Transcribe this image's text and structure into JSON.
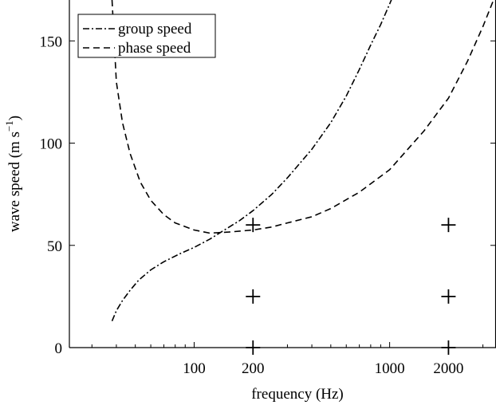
{
  "chart_data": {
    "type": "line",
    "title": "",
    "xlabel": "frequency (Hz)",
    "ylabel_parts": {
      "main": "wave speed (m s",
      "superscript": "−1",
      "close": ")"
    },
    "x_scale": "log",
    "xlim": [
      23,
      3500
    ],
    "ylim": [
      0,
      170
    ],
    "x_ticks": [
      100,
      200,
      1000,
      2000
    ],
    "x_tick_labels": [
      "100",
      "200",
      "1000",
      "2000"
    ],
    "x_minor_ticks": [
      30,
      40,
      50,
      60,
      70,
      80,
      90,
      300,
      400,
      500,
      600,
      700,
      800,
      900,
      3000
    ],
    "y_ticks": [
      0,
      50,
      100,
      150
    ],
    "y_tick_labels": [
      "0",
      "50",
      "100",
      "150"
    ],
    "legend_position": "top-left",
    "grid": false,
    "series": [
      {
        "name": "group speed",
        "style": "dash-dot",
        "color": "#000000",
        "points": [
          [
            38,
            13
          ],
          [
            40,
            18
          ],
          [
            43,
            23
          ],
          [
            47,
            28
          ],
          [
            52,
            33
          ],
          [
            60,
            38
          ],
          [
            70,
            42
          ],
          [
            85,
            46
          ],
          [
            100,
            49
          ],
          [
            120,
            53
          ],
          [
            140,
            57
          ],
          [
            170,
            62
          ],
          [
            200,
            67
          ],
          [
            250,
            75
          ],
          [
            300,
            83
          ],
          [
            400,
            97
          ],
          [
            500,
            110
          ],
          [
            600,
            123
          ],
          [
            700,
            136
          ],
          [
            800,
            148
          ],
          [
            900,
            158
          ],
          [
            1000,
            168
          ],
          [
            1030,
            171
          ]
        ]
      },
      {
        "name": "phase speed",
        "style": "dashed",
        "color": "#000000",
        "points": [
          [
            38,
            170
          ],
          [
            39,
            150
          ],
          [
            40,
            130
          ],
          [
            43,
            110
          ],
          [
            47,
            95
          ],
          [
            53,
            81
          ],
          [
            60,
            72
          ],
          [
            70,
            65
          ],
          [
            80,
            61
          ],
          [
            100,
            57.5
          ],
          [
            120,
            56
          ],
          [
            150,
            56.5
          ],
          [
            200,
            57.5
          ],
          [
            250,
            59
          ],
          [
            300,
            61
          ],
          [
            400,
            64
          ],
          [
            500,
            68
          ],
          [
            700,
            76
          ],
          [
            1000,
            87
          ],
          [
            1500,
            106
          ],
          [
            2000,
            122
          ],
          [
            2500,
            140
          ],
          [
            3000,
            157
          ],
          [
            3400,
            170
          ]
        ]
      }
    ],
    "markers": [
      {
        "symbol": "+",
        "x": 200,
        "y": 60
      },
      {
        "symbol": "+",
        "x": 200,
        "y": 25
      },
      {
        "symbol": "+",
        "x": 200,
        "y": 0
      },
      {
        "symbol": "+",
        "x": 2000,
        "y": 60
      },
      {
        "symbol": "+",
        "x": 2000,
        "y": 25
      },
      {
        "symbol": "+",
        "x": 2000,
        "y": 0
      }
    ]
  }
}
